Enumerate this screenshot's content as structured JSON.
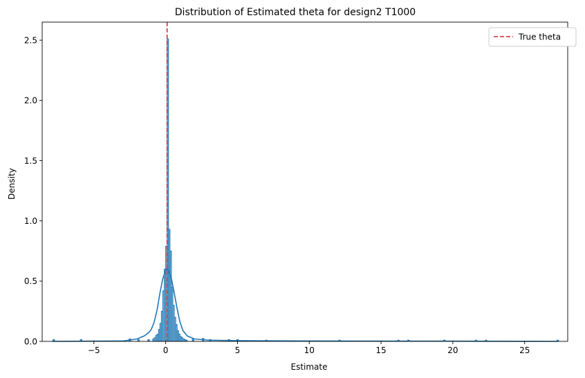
{
  "chart_data": {
    "type": "histogram",
    "title": "Distribution of Estimated theta for design2 T1000",
    "xlabel": "Estimate",
    "ylabel": "Density",
    "xlim": [
      -8.6,
      28.0
    ],
    "ylim": [
      0,
      2.65
    ],
    "xticks": [
      -5,
      0,
      5,
      10,
      15,
      20,
      25
    ],
    "xtick_labels": [
      "−5",
      "0",
      "5",
      "10",
      "15",
      "20",
      "25"
    ],
    "yticks": [
      0.0,
      0.5,
      1.0,
      1.5,
      2.0,
      2.5
    ],
    "ytick_labels": [
      "0.0",
      "0.5",
      "1.0",
      "1.5",
      "2.0",
      "2.5"
    ],
    "grid": false,
    "legend": {
      "position": "top-right",
      "entries": [
        {
          "label": "True theta",
          "color": "#d62728",
          "style": "dashed"
        }
      ]
    },
    "true_theta": 0.1,
    "bar_color": "#1f77b4",
    "bar_fill_alpha": 0.5,
    "histogram": {
      "bin_edges": [
        -0.9,
        -0.8,
        -0.7,
        -0.6,
        -0.5,
        -0.4,
        -0.3,
        -0.2,
        -0.1,
        0.0,
        0.1,
        0.2,
        0.3,
        0.4,
        0.5,
        0.6,
        0.7,
        0.8,
        0.9,
        1.0,
        1.1,
        1.2,
        1.3,
        1.4,
        1.5
      ],
      "densities": [
        0.02,
        0.03,
        0.05,
        0.06,
        0.1,
        0.15,
        0.25,
        0.42,
        0.6,
        0.79,
        2.51,
        0.93,
        0.75,
        0.45,
        0.3,
        0.2,
        0.14,
        0.09,
        0.06,
        0.04,
        0.03,
        0.02,
        0.015,
        0.01
      ]
    },
    "outlier_bins": [
      {
        "x": -7.8,
        "density": 0.01
      },
      {
        "x": -5.9,
        "density": 0.01
      },
      {
        "x": -2.5,
        "density": 0.015
      },
      {
        "x": -1.9,
        "density": 0.01
      },
      {
        "x": -1.2,
        "density": 0.01
      },
      {
        "x": 1.9,
        "density": 0.015
      },
      {
        "x": 2.6,
        "density": 0.02
      },
      {
        "x": 3.1,
        "density": 0.01
      },
      {
        "x": 4.4,
        "density": 0.01
      },
      {
        "x": 5.0,
        "density": 0.01
      },
      {
        "x": 7.0,
        "density": 0.005
      },
      {
        "x": 12.1,
        "density": 0.005
      },
      {
        "x": 16.2,
        "density": 0.005
      },
      {
        "x": 16.9,
        "density": 0.005
      },
      {
        "x": 19.4,
        "density": 0.005
      },
      {
        "x": 21.6,
        "density": 0.005
      },
      {
        "x": 22.3,
        "density": 0.005
      },
      {
        "x": 27.3,
        "density": 0.005
      }
    ],
    "kde": {
      "x": [
        -7.9,
        -3.0,
        -2.0,
        -1.5,
        -1.2,
        -1.0,
        -0.8,
        -0.6,
        -0.4,
        -0.2,
        0.0,
        0.1,
        0.2,
        0.4,
        0.6,
        0.8,
        1.0,
        1.2,
        1.5,
        2.0,
        3.0,
        5.0,
        10.0,
        20.0,
        27.3
      ],
      "y": [
        0.0,
        0.003,
        0.02,
        0.045,
        0.07,
        0.1,
        0.16,
        0.26,
        0.4,
        0.52,
        0.59,
        0.6,
        0.59,
        0.52,
        0.4,
        0.27,
        0.16,
        0.09,
        0.045,
        0.02,
        0.01,
        0.006,
        0.003,
        0.002,
        0.0
      ]
    }
  }
}
